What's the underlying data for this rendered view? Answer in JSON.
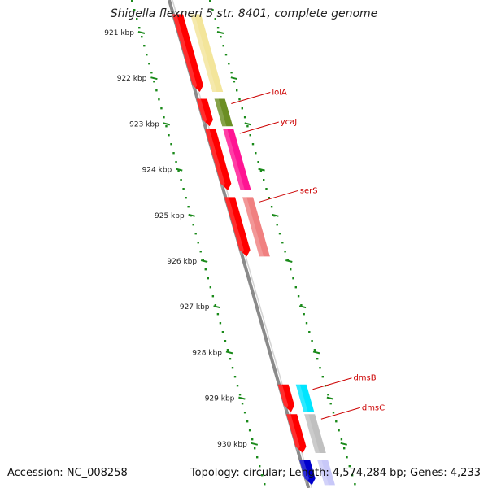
{
  "title": "Shigella flexneri 5 str. 8401, complete genome",
  "footer": {
    "accession": "Accession: NC_008258",
    "topology": "Topology: circular; Length: 4,574,284 bp; Genes: 4,233"
  },
  "colors": {
    "backbone": "#8a8a8a",
    "ticks": "#1a8a1a",
    "gene_label": "#cc0000",
    "cds_forward": "#ff0000"
  },
  "ticks": [
    {
      "kbp": 921,
      "label": "921 kbp"
    },
    {
      "kbp": 922,
      "label": "922 kbp"
    },
    {
      "kbp": 923,
      "label": "923 kbp"
    },
    {
      "kbp": 924,
      "label": "924 kbp"
    },
    {
      "kbp": 925,
      "label": "925 kbp"
    },
    {
      "kbp": 926,
      "label": "926 kbp"
    },
    {
      "kbp": 927,
      "label": "927 kbp"
    },
    {
      "kbp": 928,
      "label": "928 kbp"
    },
    {
      "kbp": 929,
      "label": "929 kbp"
    },
    {
      "kbp": 930,
      "label": "930 kbp"
    }
  ],
  "features": [
    {
      "track": "cds",
      "start_kbp": 920.6,
      "end_kbp": 922.3,
      "color": "#ff0000"
    },
    {
      "track": "gene",
      "start_kbp": 920.6,
      "end_kbp": 922.3,
      "color": "#f3e59a"
    },
    {
      "track": "cds",
      "start_kbp": 922.45,
      "end_kbp": 923.05,
      "color": "#ff0000"
    },
    {
      "track": "gene",
      "start_kbp": 922.45,
      "end_kbp": 923.05,
      "color": "#6b8e23",
      "label": "lolA"
    },
    {
      "track": "cds",
      "start_kbp": 923.1,
      "end_kbp": 924.45,
      "color": "#ff0000"
    },
    {
      "track": "gene",
      "start_kbp": 923.1,
      "end_kbp": 924.45,
      "color": "#ff1493",
      "label": "ycaJ"
    },
    {
      "track": "cds",
      "start_kbp": 924.6,
      "end_kbp": 925.9,
      "color": "#ff0000"
    },
    {
      "track": "gene",
      "start_kbp": 924.6,
      "end_kbp": 925.9,
      "color": "#f08080",
      "label": "serS"
    },
    {
      "track": "cds",
      "start_kbp": 928.7,
      "end_kbp": 929.3,
      "color": "#ff0000"
    },
    {
      "track": "gene",
      "start_kbp": 928.7,
      "end_kbp": 929.3,
      "color": "#00e5ff",
      "label": "dmsB"
    },
    {
      "track": "cds",
      "start_kbp": 929.35,
      "end_kbp": 930.2,
      "color": "#ff0000"
    },
    {
      "track": "gene",
      "start_kbp": 929.35,
      "end_kbp": 930.2,
      "color": "#c0c0c0",
      "label": "dmsC"
    },
    {
      "track": "cds",
      "start_kbp": 930.35,
      "end_kbp": 930.9,
      "color": "#0000cc"
    },
    {
      "track": "gene",
      "start_kbp": 930.35,
      "end_kbp": 930.9,
      "color": "#c8c8f8"
    }
  ]
}
